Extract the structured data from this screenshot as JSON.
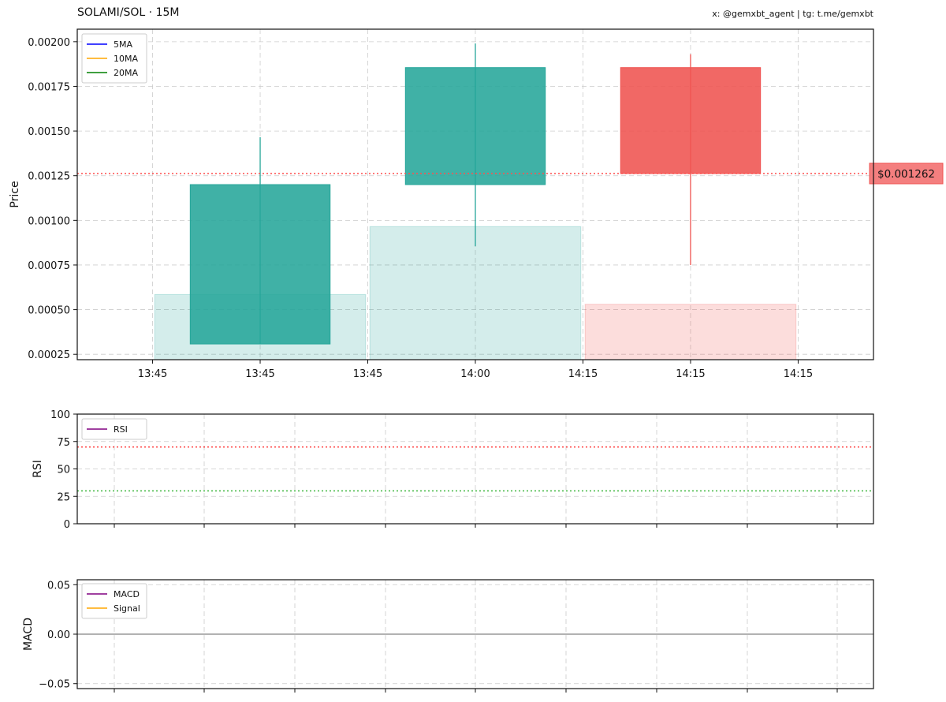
{
  "header": {
    "title": "SOLAMI/SOL · 15M",
    "credit": "x: @gemxbt_agent | tg: t.me/gemxbt"
  },
  "colors": {
    "up": "#26a69a",
    "down": "#ef5350",
    "ma5": "#0000ff",
    "ma10": "#ffa500",
    "ma20": "#008000",
    "rsi": "#800080",
    "macd": "#800080",
    "signal": "#ffa500",
    "overbought": "#ff0000",
    "oversold": "#00a000",
    "grid": "#cccccc"
  },
  "chart_data": [
    {
      "panel": "price",
      "type": "candlestick",
      "ylabel": "Price",
      "ylim": [
        0.00022,
        0.00207
      ],
      "yticks": [
        "0.00025",
        "0.00050",
        "0.00075",
        "0.00100",
        "0.00125",
        "0.00150",
        "0.00175",
        "0.00200"
      ],
      "xlim": [
        -0.85,
        2.85
      ],
      "xticks": [
        {
          "x": -0.5,
          "label": "13:45"
        },
        {
          "x": 0,
          "label": "13:45"
        },
        {
          "x": 0.5,
          "label": "13:45"
        },
        {
          "x": 1,
          "label": "14:00"
        },
        {
          "x": 1.5,
          "label": "14:15"
        },
        {
          "x": 2,
          "label": "14:15"
        },
        {
          "x": 2.5,
          "label": "14:15"
        }
      ],
      "candles": [
        {
          "x": 0,
          "open": 0.000308,
          "high": 0.001465,
          "low": 0.000308,
          "close": 0.0012,
          "volume": 0.000585
        },
        {
          "x": 1,
          "open": 0.0012,
          "high": 0.00199,
          "low": 0.000855,
          "close": 0.001855,
          "volume": 0.000965
        },
        {
          "x": 2,
          "open": 0.001855,
          "high": 0.00193,
          "low": 0.00075,
          "close": 0.001262,
          "volume": 0.00053
        }
      ],
      "current_price": 0.001262,
      "current_price_label": "$0.001262",
      "legend": [
        "5MA",
        "10MA",
        "20MA"
      ],
      "legend_position": "top-left",
      "grid": true
    },
    {
      "panel": "rsi",
      "type": "line",
      "ylabel": "RSI",
      "ylim": [
        0,
        100
      ],
      "yticks": [
        "0",
        "25",
        "50",
        "75",
        "100"
      ],
      "overbought": 70,
      "oversold": 30,
      "series": [
        {
          "name": "RSI",
          "values": []
        }
      ],
      "legend_position": "top-left",
      "grid": true
    },
    {
      "panel": "macd",
      "type": "line",
      "ylabel": "MACD",
      "ylim": [
        -0.055,
        0.055
      ],
      "yticks": [
        "−0.05",
        "0.00",
        "0.05"
      ],
      "series": [
        {
          "name": "MACD",
          "values": []
        },
        {
          "name": "Signal",
          "values": []
        }
      ],
      "legend_position": "top-left",
      "grid": true
    }
  ]
}
